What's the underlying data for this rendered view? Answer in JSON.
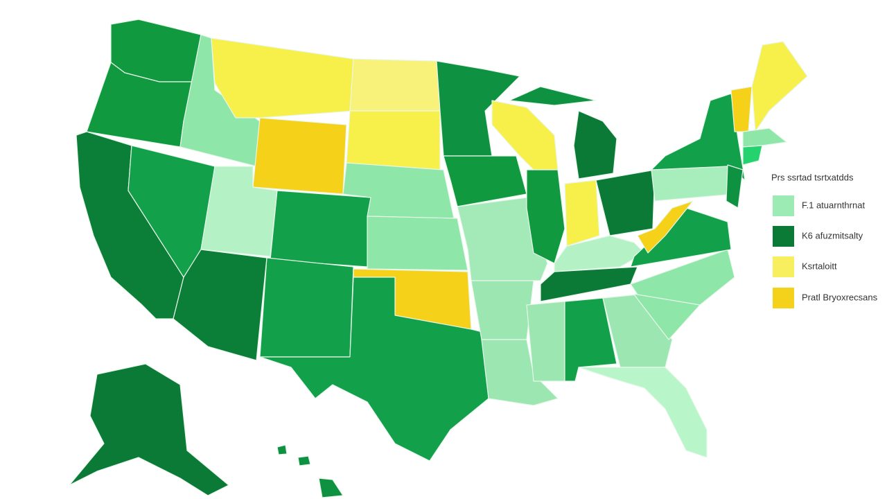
{
  "legend": {
    "title": "Prs ssrtad tsrtxatdds",
    "items": [
      {
        "label": "F.1 atuarnthrnat",
        "color": "#9cebb4"
      },
      {
        "label": "K6 afuzmitsalty",
        "color": "#0b7a36"
      },
      {
        "label": "Ksrtaloitt",
        "color": "#f7ef5e"
      },
      {
        "label": "Pratl Bryoxrecsans",
        "color": "#f4d11a"
      }
    ]
  }
}
